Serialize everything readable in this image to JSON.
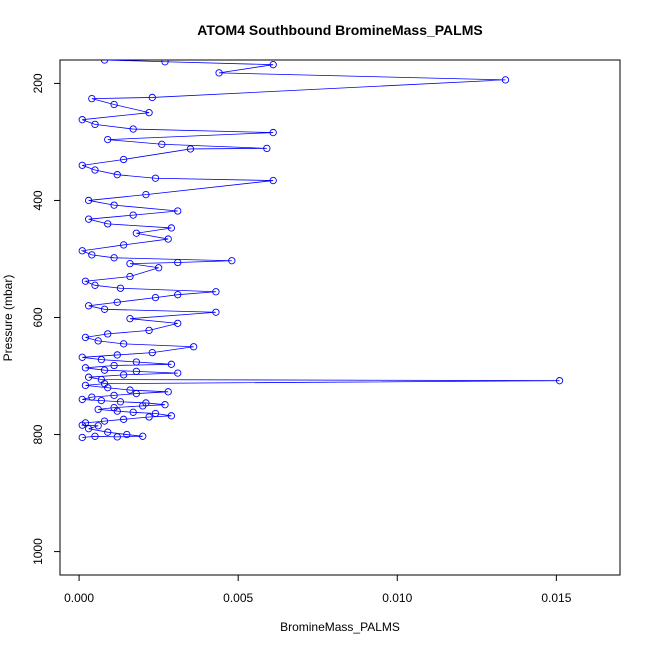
{
  "chart_data": {
    "type": "line",
    "title": "ATOM4 Southbound BromineMass_PALMS",
    "xlabel": "BromineMass_PALMS",
    "ylabel": "Pressure (mbar)",
    "xlim": [
      -0.0006,
      0.017
    ],
    "ylim": [
      1040,
      160
    ],
    "y_reversed": true,
    "x_ticks": [
      0,
      0.005,
      0.01,
      0.015
    ],
    "x_tick_labels": [
      "0.000",
      "0.005",
      "0.010",
      "0.015"
    ],
    "y_ticks": [
      200,
      400,
      600,
      800,
      1000
    ],
    "y_tick_labels": [
      "200",
      "400",
      "600",
      "800",
      "1000"
    ],
    "grid": false,
    "legend": "none",
    "marker": "open-circle",
    "series": [
      {
        "color": "#0000ff",
        "points": [
          [
            0.0001,
            805
          ],
          [
            0.0005,
            803
          ],
          [
            0.0012,
            804
          ],
          [
            0.002,
            803
          ],
          [
            0.0015,
            800
          ],
          [
            0.0009,
            796
          ],
          [
            0.0003,
            790
          ],
          [
            0.0006,
            785
          ],
          [
            0.0001,
            784
          ],
          [
            0.0002,
            780
          ],
          [
            0.0008,
            777
          ],
          [
            0.0014,
            774
          ],
          [
            0.0022,
            770
          ],
          [
            0.0029,
            768
          ],
          [
            0.0024,
            764
          ],
          [
            0.0017,
            762
          ],
          [
            0.0012,
            760
          ],
          [
            0.0006,
            757
          ],
          [
            0.0011,
            754
          ],
          [
            0.002,
            751
          ],
          [
            0.0027,
            749
          ],
          [
            0.0021,
            746
          ],
          [
            0.0013,
            744
          ],
          [
            0.0007,
            742
          ],
          [
            0.0001,
            740
          ],
          [
            0.0004,
            736
          ],
          [
            0.0011,
            733
          ],
          [
            0.0018,
            730
          ],
          [
            0.0028,
            727
          ],
          [
            0.0016,
            724
          ],
          [
            0.0009,
            720
          ],
          [
            0.0002,
            716
          ],
          [
            0.0008,
            713
          ],
          [
            0.0151,
            708
          ],
          [
            0.0007,
            706
          ],
          [
            0.0003,
            702
          ],
          [
            0.0014,
            698
          ],
          [
            0.0031,
            695
          ],
          [
            0.0018,
            692
          ],
          [
            0.0008,
            690
          ],
          [
            0.0002,
            686
          ],
          [
            0.0011,
            682
          ],
          [
            0.0029,
            680
          ],
          [
            0.0018,
            676
          ],
          [
            0.0007,
            672
          ],
          [
            0.0001,
            668
          ],
          [
            0.0012,
            664
          ],
          [
            0.0023,
            660
          ],
          [
            0.0036,
            650
          ],
          [
            0.0014,
            645
          ],
          [
            0.0006,
            640
          ],
          [
            0.0002,
            634
          ],
          [
            0.0009,
            628
          ],
          [
            0.0022,
            622
          ],
          [
            0.0031,
            610
          ],
          [
            0.0016,
            602
          ],
          [
            0.0043,
            591
          ],
          [
            0.0008,
            586
          ],
          [
            0.0003,
            580
          ],
          [
            0.0012,
            574
          ],
          [
            0.0024,
            566
          ],
          [
            0.0031,
            561
          ],
          [
            0.0043,
            556
          ],
          [
            0.0013,
            550
          ],
          [
            0.0005,
            545
          ],
          [
            0.0002,
            538
          ],
          [
            0.0016,
            530
          ],
          [
            0.0025,
            515
          ],
          [
            0.0016,
            508
          ],
          [
            0.0031,
            506
          ],
          [
            0.0048,
            503
          ],
          [
            0.0011,
            498
          ],
          [
            0.0004,
            493
          ],
          [
            0.0001,
            486
          ],
          [
            0.0014,
            476
          ],
          [
            0.0028,
            466
          ],
          [
            0.0018,
            456
          ],
          [
            0.0029,
            447
          ],
          [
            0.0009,
            440
          ],
          [
            0.0003,
            432
          ],
          [
            0.0017,
            425
          ],
          [
            0.0031,
            418
          ],
          [
            0.0011,
            408
          ],
          [
            0.0003,
            400
          ],
          [
            0.0021,
            390
          ],
          [
            0.0061,
            366
          ],
          [
            0.0024,
            362
          ],
          [
            0.0012,
            356
          ],
          [
            0.0005,
            348
          ],
          [
            0.0001,
            340
          ],
          [
            0.0014,
            330
          ],
          [
            0.0035,
            312
          ],
          [
            0.0059,
            311
          ],
          [
            0.0026,
            304
          ],
          [
            0.0009,
            296
          ],
          [
            0.0061,
            284
          ],
          [
            0.0017,
            278
          ],
          [
            0.0005,
            270
          ],
          [
            0.0001,
            262
          ],
          [
            0.0022,
            250
          ],
          [
            0.0011,
            236
          ],
          [
            0.0004,
            226
          ],
          [
            0.0023,
            224
          ],
          [
            0.0134,
            194
          ],
          [
            0.0044,
            182
          ],
          [
            0.0061,
            168
          ],
          [
            0.0027,
            163
          ],
          [
            0.0008,
            160
          ]
        ]
      }
    ]
  }
}
